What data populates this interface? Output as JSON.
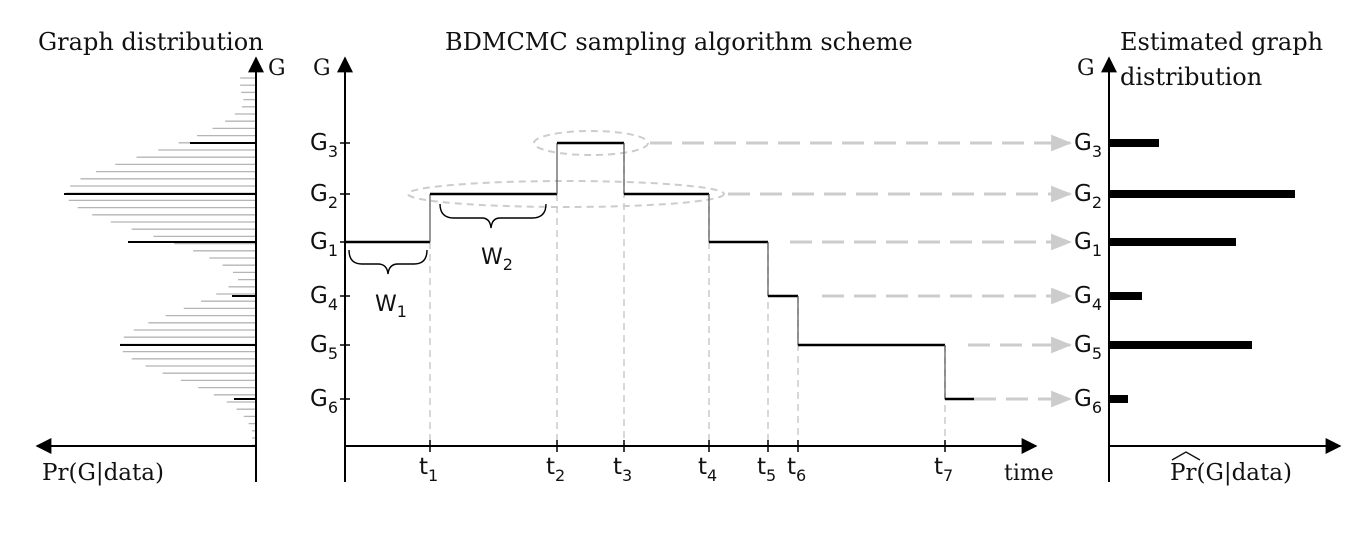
{
  "titles": {
    "left": "Graph distribution",
    "middle": "BDMCMC sampling algorithm scheme",
    "right_line1": "Estimated graph",
    "right_line2": "distribution"
  },
  "axis_labels": {
    "left_y": "G",
    "middle_y": "G",
    "right_y": "G",
    "middle_x": "time",
    "left_x": "Pr(G|data)",
    "right_x_prefix": "Pr",
    "right_x_suffix": "(G|data)"
  },
  "graph_states": [
    {
      "base": "G",
      "sub": "3"
    },
    {
      "base": "G",
      "sub": "2"
    },
    {
      "base": "G",
      "sub": "1"
    },
    {
      "base": "G",
      "sub": "4"
    },
    {
      "base": "G",
      "sub": "5"
    },
    {
      "base": "G",
      "sub": "6"
    }
  ],
  "times": [
    {
      "base": "t",
      "sub": "1"
    },
    {
      "base": "t",
      "sub": "2"
    },
    {
      "base": "t",
      "sub": "3"
    },
    {
      "base": "t",
      "sub": "4"
    },
    {
      "base": "t",
      "sub": "5"
    },
    {
      "base": "t",
      "sub": "6"
    },
    {
      "base": "t",
      "sub": "7"
    }
  ],
  "waiting_times": [
    {
      "base": "W",
      "sub": "1"
    },
    {
      "base": "W",
      "sub": "2"
    }
  ],
  "colors": {
    "ink": "#000000",
    "gray_line": "#b5b5b5",
    "dashed": "#cccccc"
  }
}
